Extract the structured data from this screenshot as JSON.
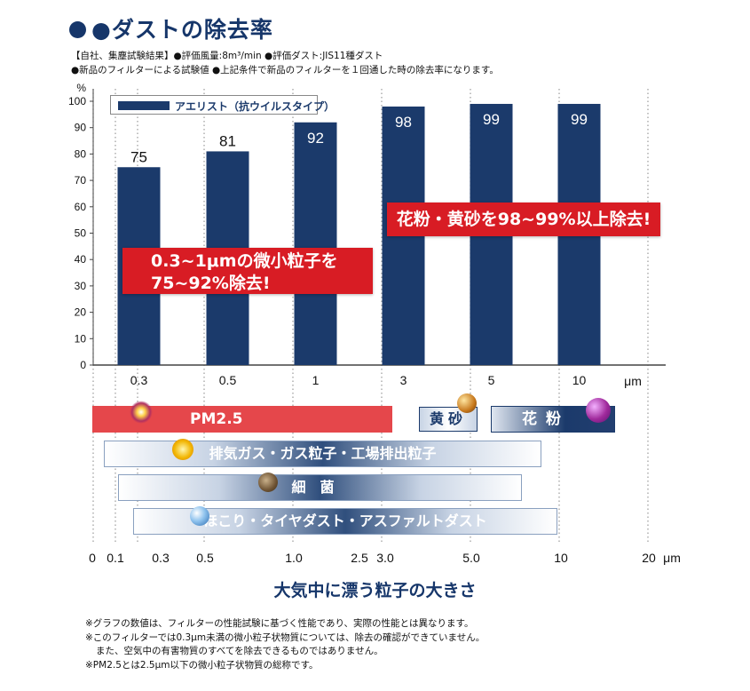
{
  "title": "●ダストの除去率",
  "notes": [
    "【自社、集塵試験結果】●評価風量:8m³/min ●評価ダスト:JIS11種ダスト",
    "●新品のフィルターによる試験値 ●上記条件で新品のフィルターを１回通した時の除去率になります。"
  ],
  "colors": {
    "bar": "#1b3a6b",
    "accent": "#d81c24",
    "title": "#16366a"
  },
  "chart_data": {
    "type": "bar",
    "categories": [
      "0.3",
      "0.5",
      "1",
      "3",
      "5",
      "10"
    ],
    "x_unit": "μm",
    "y_unit": "%",
    "ylim": [
      0,
      100
    ],
    "yticks": [
      0,
      10,
      20,
      30,
      40,
      50,
      60,
      70,
      80,
      90,
      100
    ],
    "grid": "dotted vertical",
    "series": [
      {
        "name": "アエリスト（抗ウイルスタイプ）",
        "values": [
          75,
          81,
          92,
          98,
          99,
          99
        ]
      }
    ],
    "legend_position": "top-left"
  },
  "callouts": {
    "left_line1": "0.3~1μmの微小粒子を",
    "left_line2": "75~92%除去!",
    "right": "花粉・黄砂を98~99%以上除去!"
  },
  "particles": {
    "pm25": "PM2.5",
    "yellow_dust": "黄砂",
    "pollen": "花粉",
    "exhaust": "排気ガス・ガス粒子・工場排出粒子",
    "bacteria": "細菌",
    "dust": "ほこり・タイヤダスト・アスファルトダスト"
  },
  "size_axis": {
    "ticks": [
      "0",
      "0.1",
      "0.3",
      "0.5",
      "1.0",
      "2.5",
      "3.0",
      "5.0",
      "10",
      "20"
    ],
    "unit": "μm"
  },
  "subtitle": "大気中に漂う粒子の大きさ",
  "footnotes": [
    "※グラフの数値は、フィルターの性能試験に基づく性能であり、実際の性能とは異なります。",
    "※このフィルターでは0.3μm未満の微小粒子状物質については、除去の確認ができていません。",
    "また、空気中の有害物質のすべてを除去できるものではありません。",
    "※PM2.5とは2.5μm以下の微小粒子状物質の総称です。"
  ]
}
